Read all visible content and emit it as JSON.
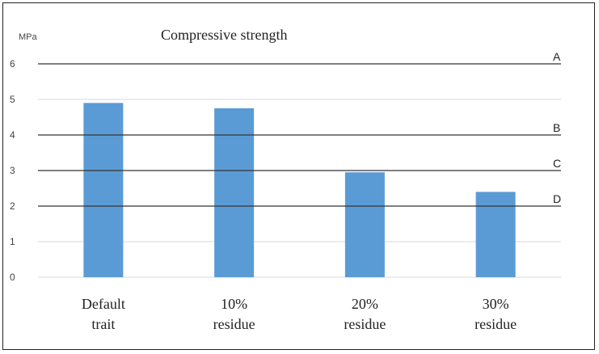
{
  "chart_data": {
    "type": "bar",
    "title": "Compressive strength",
    "unit_label": "MPa",
    "categories": [
      [
        "Default",
        "trait"
      ],
      [
        "10%",
        "residue"
      ],
      [
        "20%",
        "residue"
      ],
      [
        "30%",
        "residue"
      ]
    ],
    "values": [
      4.9,
      4.75,
      2.95,
      2.4
    ],
    "y_ticks": [
      0,
      1,
      2,
      3,
      4,
      5,
      6
    ],
    "ylim": [
      0,
      6
    ],
    "grid": true,
    "bar_color": "#5b9bd5",
    "reference_lines": [
      {
        "label": "A",
        "value": 6.0
      },
      {
        "label": "B",
        "value": 4.0
      },
      {
        "label": "C",
        "value": 3.0
      },
      {
        "label": "D",
        "value": 2.0
      }
    ]
  }
}
